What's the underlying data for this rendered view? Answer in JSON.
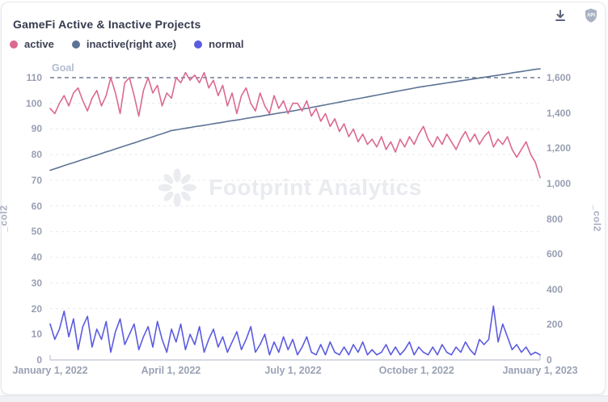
{
  "card": {
    "title": "GameFi Active & Inactive Projects"
  },
  "toolbar": {
    "api_label": "API"
  },
  "legend": {
    "items": [
      {
        "label": "active",
        "color": "#db6991"
      },
      {
        "label": "inactive(right axe)",
        "color": "#5d7394"
      },
      {
        "label": "normal",
        "color": "#5b5be0"
      }
    ]
  },
  "watermark": {
    "text": "Footprint Analytics"
  },
  "chart_data": {
    "type": "line",
    "title": "GameFi Active & Inactive Projects",
    "grid": true,
    "legend_position": "top",
    "x_axis": {
      "labels": [
        "January 1, 2022",
        "April 1, 2022",
        "July 1, 2022",
        "October 1, 2022",
        "January 1, 2023"
      ],
      "label_positions": [
        0,
        0.2466,
        0.4959,
        0.7479,
        1
      ]
    },
    "y_axis_left": {
      "name": "_col2",
      "min": 0,
      "max": 110,
      "ticks": [
        0,
        10,
        20,
        30,
        40,
        50,
        60,
        70,
        80,
        90,
        100,
        110
      ]
    },
    "y_axis_right": {
      "name": "_col2",
      "min": 0,
      "max": 1600,
      "ticks": [
        0,
        200,
        400,
        600,
        800,
        1000,
        1200,
        1400,
        1600
      ]
    },
    "goal": {
      "label": "Goal",
      "value": 110,
      "axis": "left",
      "color": "#717a93"
    },
    "series": [
      {
        "name": "active",
        "axis": "left",
        "color": "#db6991",
        "values": [
          98,
          96,
          100,
          103,
          99,
          104,
          106,
          101,
          97,
          102,
          105,
          99,
          103,
          110,
          104,
          96,
          108,
          110,
          103,
          95,
          105,
          110,
          104,
          107,
          99,
          104,
          102,
          110,
          108,
          112,
          109,
          111,
          108,
          112,
          106,
          109,
          103,
          107,
          99,
          104,
          96,
          103,
          106,
          100,
          97,
          104,
          99,
          96,
          103,
          98,
          101,
          96,
          100,
          100,
          97,
          101,
          95,
          98,
          93,
          96,
          91,
          94,
          89,
          92,
          87,
          90,
          85,
          88,
          84,
          86,
          83,
          87,
          82,
          85,
          81,
          86,
          83,
          87,
          84,
          88,
          91,
          86,
          83,
          87,
          84,
          88,
          85,
          82,
          86,
          89,
          85,
          88,
          84,
          87,
          89,
          83,
          86,
          84,
          87,
          82,
          79,
          82,
          85,
          80,
          77,
          71
        ]
      },
      {
        "name": "inactive(right axe)",
        "axis": "right",
        "color": "#5d7394",
        "values": [
          1075,
          1084,
          1092,
          1101,
          1110,
          1118,
          1127,
          1136,
          1144,
          1153,
          1161,
          1170,
          1179,
          1187,
          1196,
          1205,
          1213,
          1222,
          1230,
          1239,
          1248,
          1256,
          1265,
          1274,
          1282,
          1291,
          1300,
          1304,
          1309,
          1313,
          1317,
          1322,
          1326,
          1330,
          1334,
          1339,
          1343,
          1347,
          1352,
          1356,
          1360,
          1364,
          1369,
          1373,
          1377,
          1381,
          1386,
          1390,
          1394,
          1399,
          1403,
          1407,
          1411,
          1416,
          1421,
          1426,
          1431,
          1436,
          1441,
          1446,
          1451,
          1456,
          1461,
          1466,
          1471,
          1476,
          1481,
          1486,
          1491,
          1496,
          1501,
          1506,
          1511,
          1516,
          1521,
          1526,
          1531,
          1536,
          1541,
          1546,
          1550,
          1554,
          1558,
          1562,
          1566,
          1570,
          1574,
          1578,
          1582,
          1586,
          1590,
          1594,
          1598,
          1602,
          1606,
          1610,
          1614,
          1618,
          1622,
          1627,
          1631,
          1635,
          1639,
          1643,
          1647,
          1650
        ]
      },
      {
        "name": "normal",
        "axis": "left",
        "color": "#5b5be0",
        "values": [
          14,
          8,
          12,
          19,
          9,
          16,
          4,
          13,
          17,
          5,
          12,
          8,
          15,
          3,
          11,
          16,
          6,
          10,
          14,
          4,
          9,
          13,
          5,
          15,
          8,
          3,
          12,
          7,
          14,
          4,
          10,
          6,
          13,
          3,
          8,
          12,
          5,
          9,
          3,
          7,
          11,
          4,
          8,
          13,
          3,
          6,
          10,
          2,
          7,
          3,
          9,
          4,
          8,
          2,
          5,
          9,
          3,
          2,
          6,
          2,
          7,
          3,
          2,
          5,
          2,
          6,
          3,
          7,
          2,
          4,
          2,
          3,
          6,
          2,
          5,
          2,
          4,
          7,
          2,
          5,
          3,
          2,
          5,
          2,
          6,
          3,
          2,
          5,
          3,
          7,
          4,
          2,
          8,
          6,
          8,
          21,
          7,
          14,
          9,
          4,
          6,
          3,
          5,
          2,
          3,
          2
        ]
      }
    ]
  }
}
